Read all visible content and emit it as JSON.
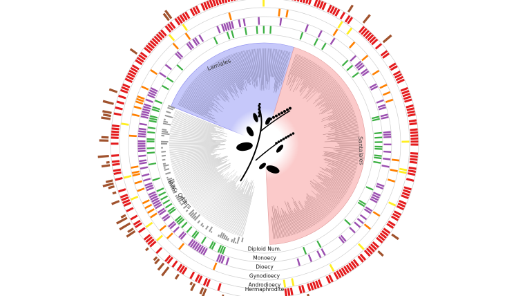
{
  "clades": [
    {
      "label": "Lamiales",
      "color": "#c6c8fa"
    },
    {
      "label": "Santalales",
      "color": "#fbcaca"
    },
    {
      "label": "Misc. Orders",
      "color": "#ffffff"
    }
  ],
  "rings": [
    {
      "label": "Diploid Num.",
      "color": "#999999"
    },
    {
      "label": "Monoecy",
      "color": "#3cb043"
    },
    {
      "label": "Dioecy",
      "color": "#9b4fb0"
    },
    {
      "label": "Gynodioecy",
      "color": "#ff8000"
    },
    {
      "label": "Androdioecy",
      "color": "#ffee22"
    },
    {
      "label": "Hermaphrodite",
      "color": "#e41a1c"
    }
  ],
  "outer_bar_color": "#a0522d",
  "center_icon": "plant-silhouette-icon"
}
